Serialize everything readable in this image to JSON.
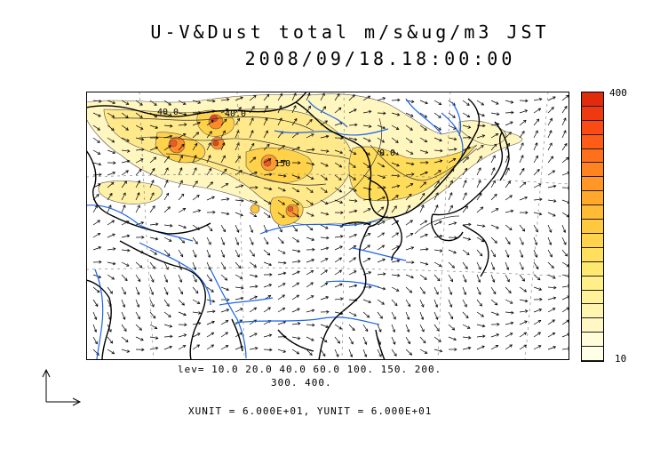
{
  "title": {
    "line1": "U-V&Dust total m/s&ug/m3 JST",
    "line2": "2008/09/18.18:00:00"
  },
  "contour_labels": [
    "40.0",
    "40.0",
    "150",
    "0.0"
  ],
  "levels_line1": "lev= 10.0 20.0 40.0 60.0 100. 150. 200.",
  "levels_line2": "300. 400.",
  "units_line": "XUNIT = 6.000E+01, YUNIT = 6.000E+01",
  "colorbar": {
    "max_label": "400",
    "min_label": "10",
    "colors": [
      "#ffffe8",
      "#fffcd8",
      "#fff8c4",
      "#fff5b0",
      "#fff29a",
      "#ffef88",
      "#ffe870",
      "#ffdf5c",
      "#ffd44c",
      "#ffc840",
      "#ffba36",
      "#ffa82c",
      "#ff9626",
      "#ff8420",
      "#ff701c",
      "#ff5c18",
      "#fb4a14",
      "#ef3a10",
      "#e02c0c"
    ]
  },
  "colors": {
    "coast": "#000000",
    "river": "#1e64e6",
    "dust_low": "#fff6b8",
    "dust_mid": "#ffdc50",
    "dust_high": "#f05a1e"
  }
}
